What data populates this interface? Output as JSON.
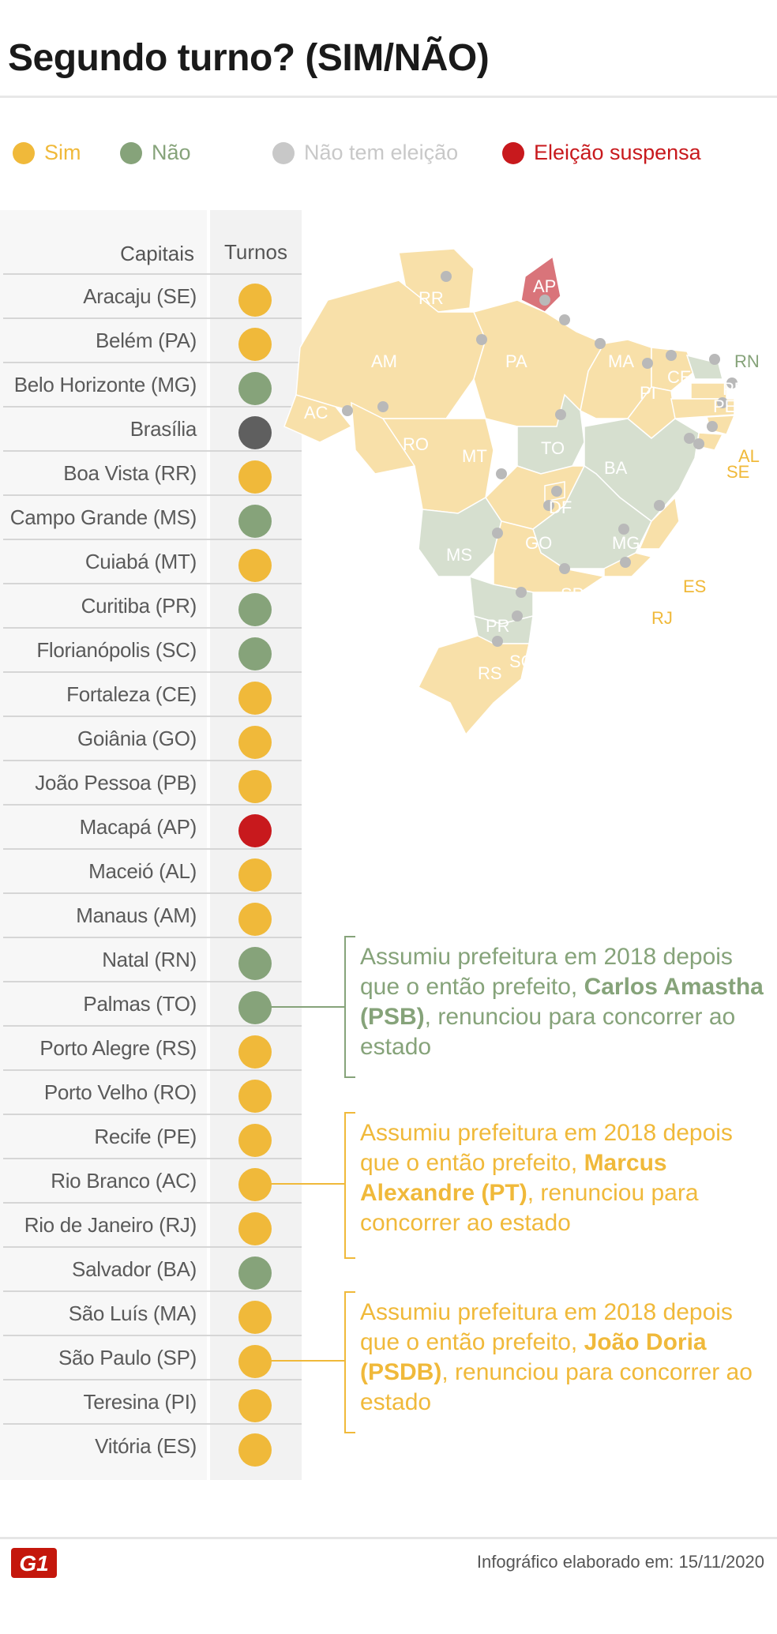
{
  "title": "Segundo turno? (SIM/NÃO)",
  "legend": [
    {
      "label": "Sim",
      "color": "#f0b93a",
      "text_color": "#f0b93a"
    },
    {
      "label": "Não",
      "color": "#86a37a",
      "text_color": "#86a37a"
    },
    {
      "label": "Não tem eleição",
      "color": "#c8c8c8",
      "text_color": "#c8c8c8"
    },
    {
      "label": "Eleição suspensa",
      "color": "#c8191d",
      "text_color": "#c8191d"
    }
  ],
  "table": {
    "col_capitais": "Capitais",
    "col_turnos": "Turnos",
    "rows": [
      {
        "name": "Aracaju (SE)",
        "status": "sim"
      },
      {
        "name": "Belém (PA)",
        "status": "sim"
      },
      {
        "name": "Belo Horizonte (MG)",
        "status": "nao"
      },
      {
        "name": "Brasília",
        "status": "sem"
      },
      {
        "name": "Boa Vista (RR)",
        "status": "sim"
      },
      {
        "name": "Campo Grande (MS)",
        "status": "nao"
      },
      {
        "name": "Cuiabá (MT)",
        "status": "sim"
      },
      {
        "name": "Curitiba (PR)",
        "status": "nao"
      },
      {
        "name": "Florianópolis (SC)",
        "status": "nao"
      },
      {
        "name": "Fortaleza (CE)",
        "status": "sim"
      },
      {
        "name": "Goiânia (GO)",
        "status": "sim"
      },
      {
        "name": "João Pessoa (PB)",
        "status": "sim"
      },
      {
        "name": "Macapá (AP)",
        "status": "suspensa"
      },
      {
        "name": "Maceió (AL)",
        "status": "sim"
      },
      {
        "name": "Manaus (AM)",
        "status": "sim"
      },
      {
        "name": "Natal (RN)",
        "status": "nao"
      },
      {
        "name": "Palmas (TO)",
        "status": "nao"
      },
      {
        "name": "Porto Alegre (RS)",
        "status": "sim"
      },
      {
        "name": "Porto Velho (RO)",
        "status": "sim"
      },
      {
        "name": "Recife (PE)",
        "status": "sim"
      },
      {
        "name": "Rio Branco (AC)",
        "status": "sim"
      },
      {
        "name": "Rio de Janeiro (RJ)",
        "status": "sim"
      },
      {
        "name": "Salvador (BA)",
        "status": "nao"
      },
      {
        "name": "São Luís (MA)",
        "status": "sim"
      },
      {
        "name": "São Paulo (SP)",
        "status": "sim"
      },
      {
        "name": "Teresina (PI)",
        "status": "sim"
      },
      {
        "name": "Vitória (ES)",
        "status": "sim"
      }
    ]
  },
  "status_colors": {
    "sim": "#f0b93a",
    "nao": "#86a37a",
    "sem": "#5f5f5f",
    "suspensa": "#c8191d"
  },
  "map": {
    "colors": {
      "sim": "#f8e0a9",
      "nao": "#d6dfcf",
      "suspensa": "#d9747a",
      "dot": "#b9b9b9"
    },
    "labels": [
      "RR",
      "AP",
      "AM",
      "PA",
      "MA",
      "CE",
      "RN",
      "PB",
      "PE",
      "PI",
      "AC",
      "RO",
      "TO",
      "AL",
      "BA",
      "SE",
      "MT",
      "DF",
      "GO",
      "MG",
      "MS",
      "ES",
      "SP",
      "RJ",
      "PR",
      "SC",
      "RS"
    ]
  },
  "notes": [
    {
      "pre": "Assumiu prefeitura em 2018 depois que o então prefeito, ",
      "bold": "Carlos Amastha (PSB)",
      "post": ", renunciou para concorrer ao estado",
      "color": "#86a37a",
      "row_index": 16
    },
    {
      "pre": "Assumiu prefeitura em 2018 depois que o então prefeito, ",
      "bold": "Marcus Alexandre (PT)",
      "post": ", renunciou para concorrer ao estado",
      "color": "#f0b93a",
      "row_index": 20
    },
    {
      "pre": "Assumiu prefeitura em 2018 depois que o então prefeito, ",
      "bold": "João Doria (PSDB)",
      "post": ", renunciou para concorrer ao estado",
      "color": "#f0b93a",
      "row_index": 24
    }
  ],
  "footer": {
    "logo_text": "G1",
    "credit": "Infográfico elaborado em: 15/11/2020"
  }
}
